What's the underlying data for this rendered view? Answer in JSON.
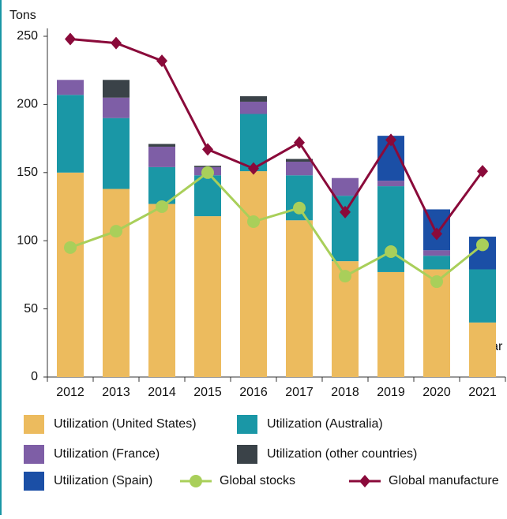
{
  "chart_data": {
    "type": "bar",
    "stacked": true,
    "y_label": "Tons",
    "x_label": "Year",
    "categories": [
      "2012",
      "2013",
      "2014",
      "2015",
      "2016",
      "2017",
      "2018",
      "2019",
      "2020",
      "2021"
    ],
    "ylim": [
      0,
      250
    ],
    "yticks": [
      0,
      50,
      100,
      150,
      200,
      250
    ],
    "series": [
      {
        "name": "Utilization (United States)",
        "type": "bar",
        "color": "#ecbb5e",
        "values": [
          150,
          138,
          127,
          118,
          151,
          115,
          85,
          77,
          79,
          40
        ]
      },
      {
        "name": "Utilization (Australia)",
        "type": "bar",
        "color": "#1a97a6",
        "values": [
          57,
          52,
          27,
          30,
          42,
          33,
          48,
          63,
          10,
          39
        ]
      },
      {
        "name": "Utilization (France)",
        "type": "bar",
        "color": "#7e5ea6",
        "values": [
          11,
          15,
          15,
          6,
          9,
          10,
          13,
          4,
          4,
          0
        ]
      },
      {
        "name": "Utilization (other countries)",
        "type": "bar",
        "color": "#3a4248",
        "values": [
          0,
          13,
          2,
          1,
          4,
          2,
          0,
          0,
          0,
          0
        ]
      },
      {
        "name": "Utilization (Spain)",
        "type": "bar",
        "color": "#1b4fa6",
        "values": [
          0,
          0,
          0,
          0,
          0,
          0,
          0,
          33,
          30,
          24
        ]
      },
      {
        "name": "Global stocks",
        "type": "line",
        "marker": "circle",
        "color": "#a9cf5a",
        "values": [
          95,
          107,
          125,
          150,
          114,
          124,
          74,
          92,
          70,
          97
        ]
      },
      {
        "name": "Global manufacture",
        "type": "line",
        "marker": "diamond",
        "color": "#8a0a3a",
        "values": [
          248,
          245,
          232,
          167,
          153,
          172,
          121,
          174,
          105,
          151
        ]
      }
    ]
  }
}
